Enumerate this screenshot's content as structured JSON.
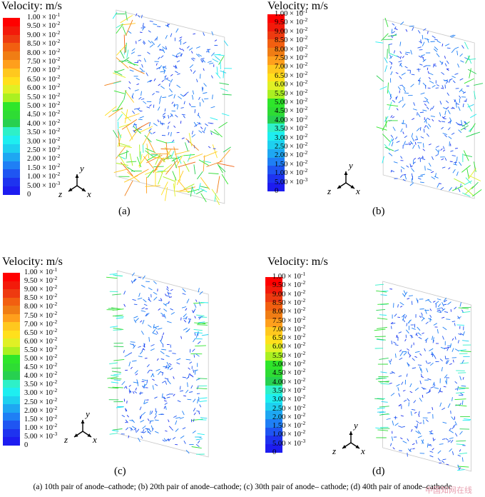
{
  "legend_title": "Velocity: m/s",
  "tick_labels": [
    {
      "m": "1.00",
      "e": "-1"
    },
    {
      "m": "9.50",
      "e": "-2"
    },
    {
      "m": "9.00",
      "e": "-2"
    },
    {
      "m": "8.50",
      "e": "-2"
    },
    {
      "m": "8.00",
      "e": "-2"
    },
    {
      "m": "7.50",
      "e": "-2"
    },
    {
      "m": "7.00",
      "e": "-2"
    },
    {
      "m": "6.50",
      "e": "-2"
    },
    {
      "m": "6.00",
      "e": "-2"
    },
    {
      "m": "5.50",
      "e": "-2"
    },
    {
      "m": "5.00",
      "e": "-2"
    },
    {
      "m": "4.50",
      "e": "-2"
    },
    {
      "m": "4.00",
      "e": "-2"
    },
    {
      "m": "3.50",
      "e": "-2"
    },
    {
      "m": "3.00",
      "e": "-2"
    },
    {
      "m": "2.50",
      "e": "-2"
    },
    {
      "m": "2.00",
      "e": "-2"
    },
    {
      "m": "1.50",
      "e": "-2"
    },
    {
      "m": "1.00",
      "e": "-2"
    },
    {
      "m": "5.00",
      "e": "-3"
    },
    {
      "m": "0",
      "e": ""
    }
  ],
  "colorbar_colors": [
    "#ff0000",
    "#f31a0a",
    "#ee3a10",
    "#f25f10",
    "#f07d14",
    "#ff9f1c",
    "#ffc81e",
    "#ffe01c",
    "#e0f025",
    "#aaf021",
    "#2ee62a",
    "#2edc34",
    "#27d050",
    "#2ef0c8",
    "#1eeef0",
    "#1ed0ef",
    "#1ea7f2",
    "#1f7ff5",
    "#1f55f2",
    "#1e33ef",
    "#1d1cf0"
  ],
  "axis_labels": {
    "y": "y",
    "z": "z",
    "x": "x"
  },
  "panels": [
    {
      "label": "(a)",
      "pattern": "a"
    },
    {
      "label": "(b)",
      "pattern": "b"
    },
    {
      "label": "(c)",
      "pattern": "c"
    },
    {
      "label": "(d)",
      "pattern": "d"
    }
  ],
  "caption": "(a) 10th pair of anode–cathode; (b) 20th pair of anode–cathode; (c) 30th pair of anode–  cathode; (d) 40th pair of anode–cathode",
  "watermark": "中国知网在线"
}
